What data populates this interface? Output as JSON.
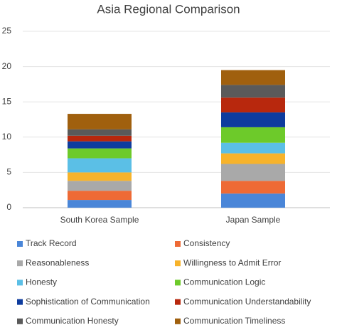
{
  "chart_data": {
    "type": "stacked_bar",
    "title": "Asia Regional Comparison",
    "categories": [
      "South Korea Sample",
      "Japan Sample"
    ],
    "series": [
      {
        "name": "Track Record",
        "color": "#4a86d8",
        "values": [
          1.1,
          2.0
        ]
      },
      {
        "name": "Consistency",
        "color": "#ee6a35",
        "values": [
          1.3,
          1.8
        ]
      },
      {
        "name": "Reasonableness",
        "color": "#a9a9a9",
        "values": [
          1.4,
          2.4
        ]
      },
      {
        "name": "Willingness to Admit Error",
        "color": "#f7b32b",
        "values": [
          1.2,
          1.5
        ]
      },
      {
        "name": "Honesty",
        "color": "#5bbfe6",
        "values": [
          2.0,
          1.5
        ]
      },
      {
        "name": "Communication Logic",
        "color": "#6dca2a",
        "values": [
          1.4,
          2.2
        ]
      },
      {
        "name": "Sophistication of Communication",
        "color": "#0e3c9e",
        "values": [
          1.0,
          2.1
        ]
      },
      {
        "name": "Communication Understandability",
        "color": "#b8280d",
        "values": [
          0.8,
          2.1
        ]
      },
      {
        "name": "Communication Honesty",
        "color": "#5a5a5a",
        "values": [
          0.9,
          1.8
        ]
      },
      {
        "name": "Communication Timeliness",
        "color": "#a0600e",
        "values": [
          2.2,
          2.1
        ]
      }
    ],
    "ylim": [
      0,
      25
    ],
    "yticks": [
      0,
      5,
      10,
      15,
      20,
      25
    ],
    "grid": true,
    "legend": "bottom"
  }
}
